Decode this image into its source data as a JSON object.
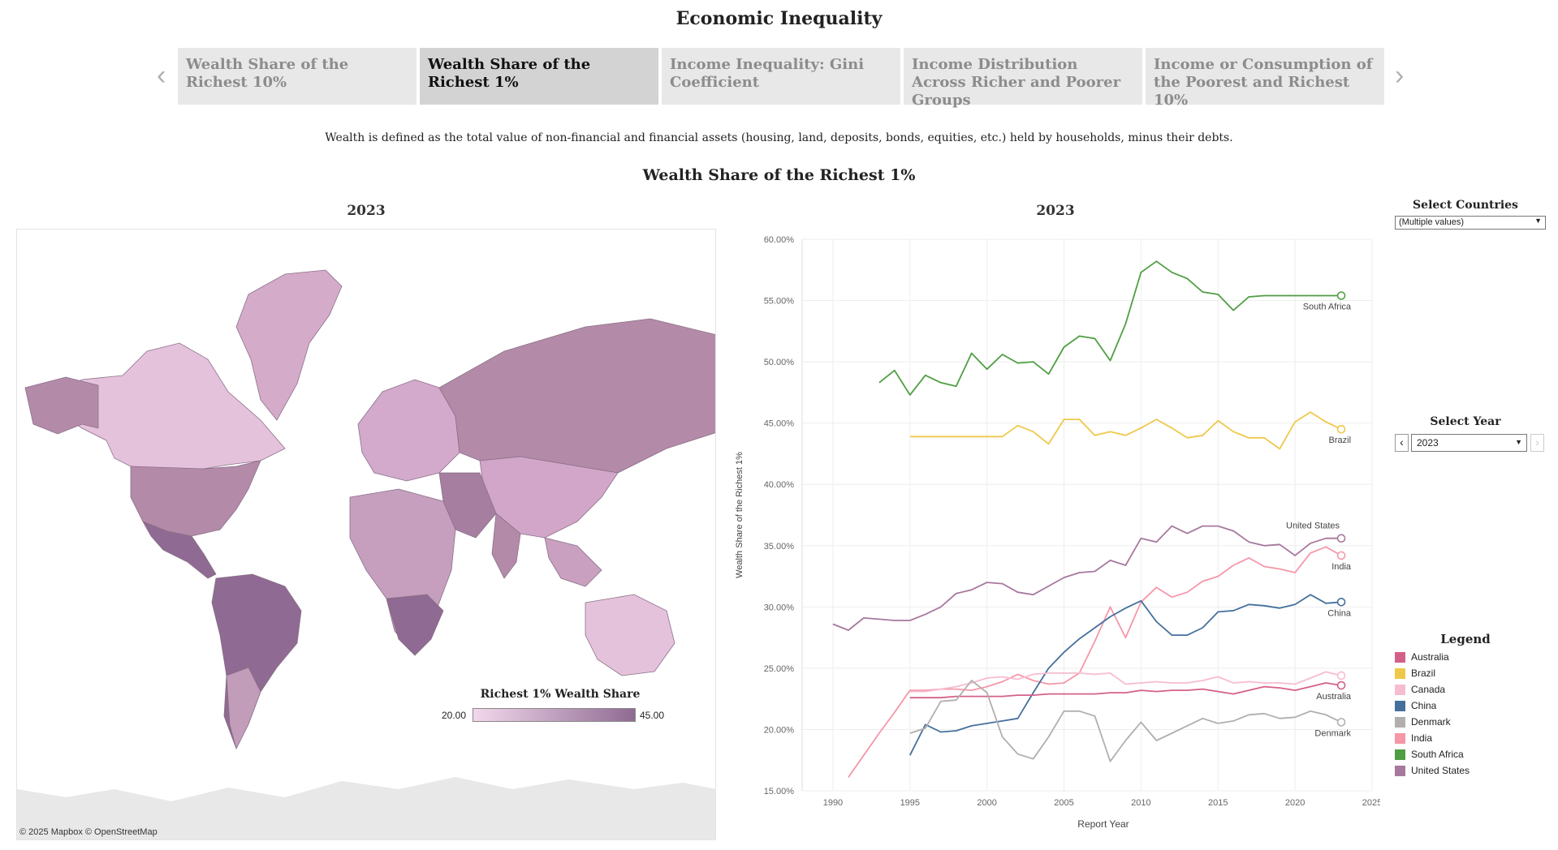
{
  "page": {
    "title": "Economic Inequality"
  },
  "tabs": [
    {
      "label": "Wealth Share of the Richest 10%",
      "active": false
    },
    {
      "label": "Wealth Share of the Richest 1%",
      "active": true
    },
    {
      "label": "Income Inequality: Gini Coefficient",
      "active": false
    },
    {
      "label": "Income Distribution Across Richer and Poorer Groups",
      "active": false
    },
    {
      "label": "Income or Consumption of the Poorest and Richest 10%",
      "active": false
    }
  ],
  "icons": {
    "prev": "chevron-left-icon",
    "next": "chevron-right-icon",
    "dropdown": "chevron-down-icon"
  },
  "definition": "Wealth is defined as the total value of non-financial and financial assets (housing, land, deposits, bonds, equities, etc.) held by households, minus their debts.",
  "section_title": "Wealth Share of the Richest 1%",
  "map": {
    "year": "2023",
    "credit": "© 2025 Mapbox  © OpenStreetMap",
    "legend": {
      "title": "Richest 1% Wealth Share",
      "min": "20.00",
      "max": "45.00",
      "color_min": "#f2d8ec",
      "color_max": "#8f6a92"
    }
  },
  "controls": {
    "select_countries": {
      "title": "Select Countries",
      "value": "(Multiple values)"
    },
    "select_year": {
      "title": "Select Year",
      "value": "2023"
    }
  },
  "legend": {
    "title": "Legend",
    "items": [
      {
        "label": "Australia",
        "color": "#d4608a"
      },
      {
        "label": "Brazil",
        "color": "#efc84a"
      },
      {
        "label": "Canada",
        "color": "#f7bcd1"
      },
      {
        "label": "China",
        "color": "#45709c"
      },
      {
        "label": "Denmark",
        "color": "#b3aeae"
      },
      {
        "label": "India",
        "color": "#f597a8"
      },
      {
        "label": "South Africa",
        "color": "#4f9e43"
      },
      {
        "label": "United States",
        "color": "#a7789d"
      }
    ]
  },
  "chart_data": {
    "type": "line",
    "title": "2023",
    "xlabel": "Report Year",
    "ylabel": "Wealth Share of the Richest 1%",
    "xlim": [
      1988,
      2025
    ],
    "ylim": [
      15,
      60
    ],
    "xticks": [
      "1990",
      "1995",
      "2000",
      "2005",
      "2010",
      "2015",
      "2020",
      "2025"
    ],
    "yticks": [
      "15.00%",
      "20.00%",
      "25.00%",
      "30.00%",
      "35.00%",
      "40.00%",
      "45.00%",
      "50.00%",
      "55.00%",
      "60.00%"
    ],
    "grid": true,
    "series": [
      {
        "name": "South Africa",
        "color": "#4f9e43",
        "end_label": "South Africa",
        "x": [
          1993,
          1994,
          1995,
          1996,
          1997,
          1998,
          1999,
          2000,
          2001,
          2002,
          2003,
          2004,
          2005,
          2006,
          2007,
          2008,
          2009,
          2010,
          2011,
          2012,
          2013,
          2014,
          2015,
          2016,
          2017,
          2018,
          2019,
          2020,
          2021,
          2022,
          2023
        ],
        "y": [
          48.3,
          49.3,
          47.3,
          48.9,
          48.3,
          48.0,
          50.7,
          49.4,
          50.6,
          49.9,
          50.0,
          49.0,
          51.2,
          52.1,
          51.9,
          50.1,
          53.1,
          57.3,
          58.2,
          57.3,
          56.8,
          55.7,
          55.5,
          54.2,
          55.3,
          55.4,
          55.4,
          55.4,
          55.4,
          55.4,
          55.4
        ]
      },
      {
        "name": "Brazil",
        "color": "#efc84a",
        "end_label": "Brazil",
        "x": [
          1995,
          1996,
          1997,
          1998,
          1999,
          2000,
          2001,
          2002,
          2003,
          2004,
          2005,
          2006,
          2007,
          2008,
          2009,
          2010,
          2011,
          2012,
          2013,
          2014,
          2015,
          2016,
          2017,
          2018,
          2019,
          2020,
          2021,
          2022,
          2023
        ],
        "y": [
          43.9,
          43.9,
          43.9,
          43.9,
          43.9,
          43.9,
          43.9,
          44.8,
          44.3,
          43.3,
          45.3,
          45.3,
          44.0,
          44.3,
          44.0,
          44.6,
          45.3,
          44.6,
          43.8,
          44.0,
          45.2,
          44.3,
          43.8,
          43.8,
          42.9,
          45.1,
          45.9,
          45.1,
          44.5
        ]
      },
      {
        "name": "United States",
        "color": "#a7789d",
        "end_label": "United States",
        "x": [
          1990,
          1991,
          1992,
          1993,
          1994,
          1995,
          1996,
          1997,
          1998,
          1999,
          2000,
          2001,
          2002,
          2003,
          2004,
          2005,
          2006,
          2007,
          2008,
          2009,
          2010,
          2011,
          2012,
          2013,
          2014,
          2015,
          2016,
          2017,
          2018,
          2019,
          2020,
          2021,
          2022,
          2023
        ],
        "y": [
          28.6,
          28.1,
          29.1,
          29.0,
          28.9,
          28.9,
          29.4,
          30.0,
          31.1,
          31.4,
          32.0,
          31.9,
          31.2,
          31.0,
          31.7,
          32.4,
          32.8,
          32.9,
          33.8,
          33.4,
          35.6,
          35.3,
          36.6,
          36.0,
          36.6,
          36.6,
          36.2,
          35.3,
          35.0,
          35.1,
          34.2,
          35.2,
          35.6,
          35.6
        ]
      },
      {
        "name": "India",
        "color": "#f597a8",
        "end_label": "India",
        "x": [
          1991,
          1992,
          1993,
          1994,
          1995,
          1996,
          1997,
          1998,
          1999,
          2000,
          2001,
          2002,
          2003,
          2004,
          2005,
          2006,
          2007,
          2008,
          2009,
          2010,
          2011,
          2012,
          2013,
          2014,
          2015,
          2016,
          2017,
          2018,
          2019,
          2020,
          2021,
          2022,
          2023
        ],
        "y": [
          16.1,
          17.9,
          19.7,
          21.4,
          23.2,
          23.2,
          23.3,
          23.3,
          23.2,
          23.5,
          23.9,
          24.5,
          24.0,
          23.7,
          23.8,
          24.6,
          27.2,
          30.0,
          27.5,
          30.4,
          31.6,
          30.8,
          31.2,
          32.1,
          32.5,
          33.4,
          34.0,
          33.3,
          33.1,
          32.8,
          34.4,
          34.9,
          34.2
        ]
      },
      {
        "name": "China",
        "color": "#45709c",
        "end_label": "China",
        "x": [
          1995,
          1996,
          1997,
          1998,
          1999,
          2000,
          2001,
          2002,
          2003,
          2004,
          2005,
          2006,
          2007,
          2008,
          2009,
          2010,
          2011,
          2012,
          2013,
          2014,
          2015,
          2016,
          2017,
          2018,
          2019,
          2020,
          2021,
          2022,
          2023
        ],
        "y": [
          17.9,
          20.4,
          19.8,
          19.9,
          20.3,
          20.5,
          20.7,
          20.9,
          23.0,
          25.0,
          26.3,
          27.4,
          28.3,
          29.2,
          29.9,
          30.5,
          28.8,
          27.7,
          27.7,
          28.3,
          29.6,
          29.7,
          30.2,
          30.1,
          29.9,
          30.2,
          31.0,
          30.3,
          30.4
        ]
      },
      {
        "name": "Canada",
        "color": "#f7bcd1",
        "end_label": "",
        "x": [
          1995,
          1996,
          1997,
          1998,
          1999,
          2000,
          2001,
          2002,
          2003,
          2004,
          2005,
          2006,
          2007,
          2008,
          2009,
          2010,
          2011,
          2012,
          2013,
          2014,
          2015,
          2016,
          2017,
          2018,
          2019,
          2020,
          2021,
          2022,
          2023
        ],
        "y": [
          23.1,
          23.1,
          23.3,
          23.5,
          23.8,
          24.2,
          24.3,
          24.1,
          24.5,
          24.6,
          24.6,
          24.6,
          24.5,
          24.6,
          23.7,
          23.8,
          23.9,
          23.8,
          23.8,
          24.0,
          24.3,
          23.8,
          23.9,
          23.8,
          23.8,
          23.7,
          24.2,
          24.7,
          24.4
        ]
      },
      {
        "name": "Australia",
        "color": "#d4608a",
        "end_label": "Australia",
        "x": [
          1995,
          1996,
          1997,
          1998,
          1999,
          2000,
          2001,
          2002,
          2003,
          2004,
          2005,
          2006,
          2007,
          2008,
          2009,
          2010,
          2011,
          2012,
          2013,
          2014,
          2015,
          2016,
          2017,
          2018,
          2019,
          2020,
          2021,
          2022,
          2023
        ],
        "y": [
          22.6,
          22.6,
          22.6,
          22.7,
          22.7,
          22.7,
          22.7,
          22.8,
          22.8,
          22.9,
          22.9,
          22.9,
          22.9,
          23.0,
          23.0,
          23.2,
          23.1,
          23.2,
          23.2,
          23.3,
          23.1,
          22.9,
          23.2,
          23.5,
          23.4,
          23.2,
          23.5,
          23.8,
          23.6
        ]
      },
      {
        "name": "Denmark",
        "color": "#b3aeae",
        "end_label": "Denmark",
        "x": [
          1995,
          1996,
          1997,
          1998,
          1999,
          2000,
          2001,
          2002,
          2003,
          2004,
          2005,
          2006,
          2007,
          2008,
          2009,
          2010,
          2011,
          2012,
          2013,
          2014,
          2015,
          2016,
          2017,
          2018,
          2019,
          2020,
          2021,
          2022,
          2023
        ],
        "y": [
          19.7,
          20.1,
          22.3,
          22.4,
          24.0,
          23.0,
          19.4,
          18.0,
          17.6,
          19.4,
          21.5,
          21.5,
          21.1,
          17.4,
          19.1,
          20.6,
          19.1,
          19.7,
          20.3,
          20.9,
          20.5,
          20.7,
          21.2,
          21.3,
          20.9,
          21.0,
          21.5,
          21.2,
          20.6
        ]
      }
    ]
  }
}
